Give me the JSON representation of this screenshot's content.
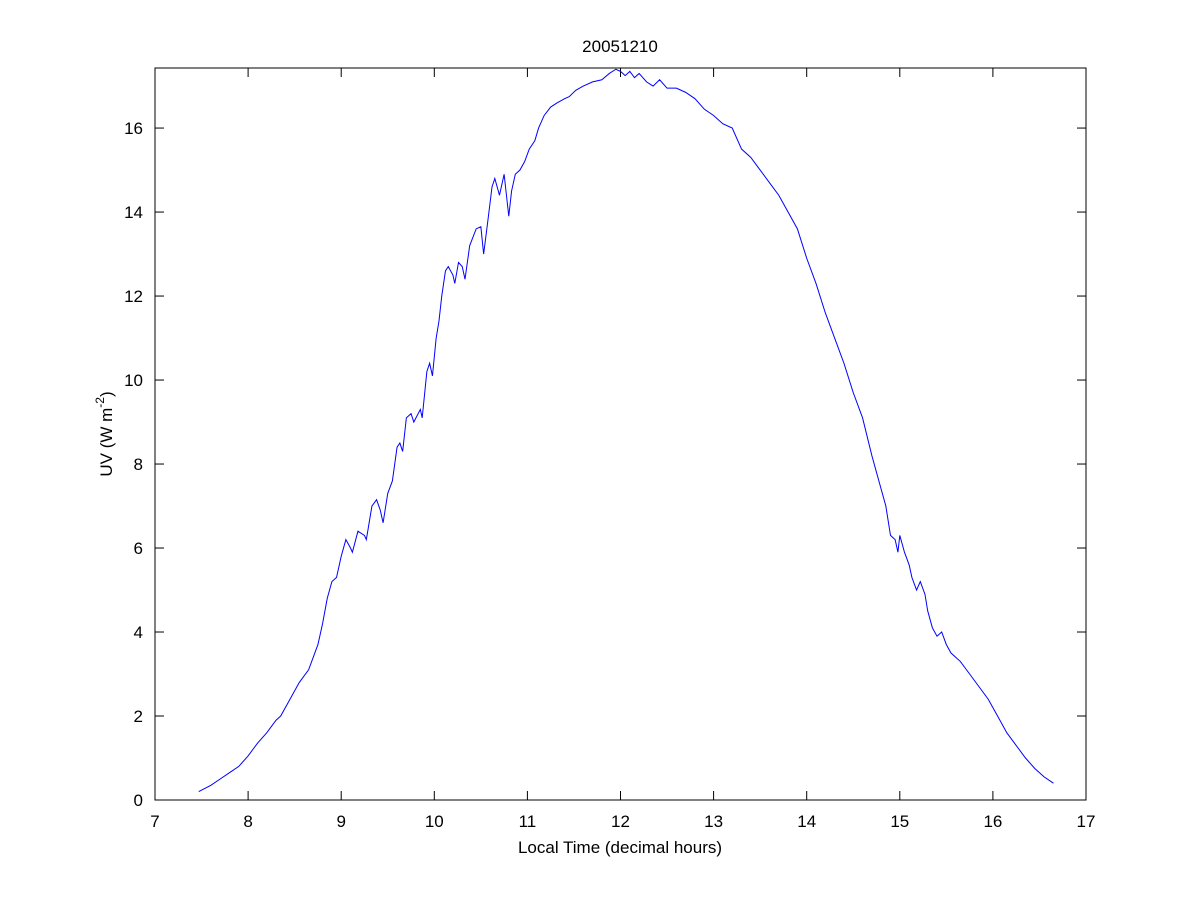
{
  "chart_data": {
    "type": "line",
    "title": "20051210",
    "xlabel": "Local Time (decimal hours)",
    "ylabel": [
      "UV (W m",
      "-2",
      ")"
    ],
    "x": [
      7.47,
      7.6,
      7.7,
      7.8,
      7.9,
      8.0,
      8.1,
      8.2,
      8.3,
      8.35,
      8.45,
      8.55,
      8.65,
      8.75,
      8.8,
      8.85,
      8.9,
      8.95,
      9.0,
      9.05,
      9.1,
      9.12,
      9.18,
      9.25,
      9.27,
      9.33,
      9.38,
      9.42,
      9.45,
      9.5,
      9.55,
      9.6,
      9.63,
      9.66,
      9.7,
      9.75,
      9.78,
      9.85,
      9.87,
      9.92,
      9.95,
      9.98,
      10.02,
      10.05,
      10.08,
      10.12,
      10.15,
      10.2,
      10.22,
      10.26,
      10.3,
      10.33,
      10.38,
      10.45,
      10.5,
      10.53,
      10.57,
      10.62,
      10.65,
      10.7,
      10.75,
      10.8,
      10.83,
      10.87,
      10.92,
      10.97,
      11.02,
      11.08,
      11.12,
      11.18,
      11.25,
      11.32,
      11.4,
      11.45,
      11.52,
      11.6,
      11.7,
      11.8,
      11.88,
      11.95,
      12.0,
      12.05,
      12.1,
      12.15,
      12.2,
      12.28,
      12.35,
      12.42,
      12.5,
      12.6,
      12.7,
      12.8,
      12.9,
      13.0,
      13.1,
      13.2,
      13.3,
      13.4,
      13.5,
      13.6,
      13.7,
      13.8,
      13.9,
      14.0,
      14.1,
      14.2,
      14.3,
      14.4,
      14.5,
      14.6,
      14.7,
      14.8,
      14.85,
      14.9,
      14.95,
      14.98,
      15.0,
      15.05,
      15.1,
      15.13,
      15.18,
      15.22,
      15.27,
      15.3,
      15.35,
      15.4,
      15.45,
      15.5,
      15.55,
      15.65,
      15.75,
      15.85,
      15.95,
      16.05,
      16.15,
      16.25,
      16.35,
      16.45,
      16.55,
      16.65
    ],
    "series": [
      {
        "color": "#0000ff",
        "values": [
          0.2,
          0.35,
          0.5,
          0.65,
          0.8,
          1.05,
          1.35,
          1.6,
          1.9,
          2.0,
          2.4,
          2.8,
          3.1,
          3.7,
          4.2,
          4.8,
          5.2,
          5.3,
          5.8,
          6.2,
          6.0,
          5.9,
          6.4,
          6.3,
          6.2,
          7.0,
          7.15,
          6.9,
          6.6,
          7.3,
          7.6,
          8.4,
          8.5,
          8.3,
          9.1,
          9.2,
          9.0,
          9.3,
          9.1,
          10.2,
          10.4,
          10.1,
          11.0,
          11.4,
          12.0,
          12.6,
          12.7,
          12.5,
          12.3,
          12.8,
          12.7,
          12.4,
          13.2,
          13.6,
          13.65,
          13.0,
          13.7,
          14.6,
          14.8,
          14.4,
          14.9,
          13.9,
          14.5,
          14.9,
          15.0,
          15.2,
          15.5,
          15.7,
          16.0,
          16.3,
          16.5,
          16.6,
          16.7,
          16.75,
          16.9,
          17.0,
          17.1,
          17.15,
          17.3,
          17.4,
          17.35,
          17.25,
          17.35,
          17.2,
          17.3,
          17.1,
          17.0,
          17.15,
          16.95,
          16.95,
          16.85,
          16.7,
          16.45,
          16.3,
          16.1,
          16.0,
          15.5,
          15.3,
          15.0,
          14.7,
          14.4,
          14.0,
          13.6,
          12.9,
          12.3,
          11.6,
          11.0,
          10.4,
          9.7,
          9.1,
          8.2,
          7.4,
          7.0,
          6.3,
          6.2,
          5.9,
          6.3,
          5.9,
          5.6,
          5.3,
          5.0,
          5.2,
          4.9,
          4.5,
          4.1,
          3.9,
          4.0,
          3.7,
          3.5,
          3.3,
          3.0,
          2.7,
          2.4,
          2.0,
          1.6,
          1.3,
          1.0,
          0.75,
          0.55,
          0.4
        ]
      }
    ],
    "xlim": [
      7,
      17
    ],
    "xticks": [
      7,
      8,
      9,
      10,
      11,
      12,
      13,
      14,
      15,
      16,
      17
    ],
    "ylim": [
      0,
      17.43
    ],
    "yticks": [
      0,
      2,
      4,
      6,
      8,
      10,
      12,
      14,
      16
    ],
    "grid": false
  }
}
